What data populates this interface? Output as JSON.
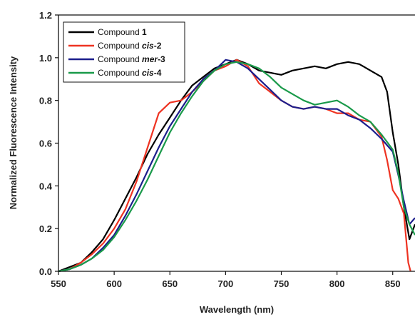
{
  "chart_data": {
    "type": "line",
    "xlabel": "Wavelength (nm)",
    "ylabel": "Normalized Fluorescence Intensity",
    "xlim": [
      550,
      870
    ],
    "ylim": [
      0,
      1.2
    ],
    "x_ticks": [
      550,
      600,
      650,
      700,
      750,
      800,
      850
    ],
    "y_ticks": [
      0.0,
      0.2,
      0.4,
      0.6,
      0.8,
      1.0,
      1.2
    ],
    "x_tick_labels": [
      "550",
      "600",
      "650",
      "700",
      "750",
      "800",
      "850"
    ],
    "y_tick_labels": [
      "0.0",
      "0.2",
      "0.4",
      "0.6",
      "0.8",
      "1.0",
      "1.2"
    ],
    "grid": false,
    "legend_position": "top-left",
    "series": [
      {
        "name_prefix": "Compound ",
        "name_style": "",
        "name_suffix": "1",
        "color": "#000000",
        "points": [
          [
            550,
            0
          ],
          [
            560,
            0.02
          ],
          [
            570,
            0.04
          ],
          [
            580,
            0.09
          ],
          [
            590,
            0.15
          ],
          [
            600,
            0.24
          ],
          [
            610,
            0.34
          ],
          [
            620,
            0.44
          ],
          [
            630,
            0.55
          ],
          [
            640,
            0.64
          ],
          [
            650,
            0.72
          ],
          [
            660,
            0.8
          ],
          [
            670,
            0.87
          ],
          [
            680,
            0.91
          ],
          [
            690,
            0.95
          ],
          [
            700,
            0.97
          ],
          [
            710,
            0.99
          ],
          [
            720,
            0.97
          ],
          [
            730,
            0.94
          ],
          [
            740,
            0.93
          ],
          [
            750,
            0.92
          ],
          [
            760,
            0.94
          ],
          [
            770,
            0.95
          ],
          [
            780,
            0.96
          ],
          [
            790,
            0.95
          ],
          [
            800,
            0.97
          ],
          [
            810,
            0.98
          ],
          [
            820,
            0.97
          ],
          [
            830,
            0.94
          ],
          [
            840,
            0.91
          ],
          [
            845,
            0.84
          ],
          [
            850,
            0.65
          ],
          [
            855,
            0.5
          ],
          [
            860,
            0.3
          ],
          [
            865,
            0.15
          ],
          [
            870,
            0.22
          ]
        ]
      },
      {
        "name_prefix": "Compound ",
        "name_style": "cis",
        "name_suffix": "-2",
        "color": "#ee3322",
        "points": [
          [
            550,
            0
          ],
          [
            560,
            0.01
          ],
          [
            570,
            0.04
          ],
          [
            580,
            0.08
          ],
          [
            590,
            0.13
          ],
          [
            600,
            0.2
          ],
          [
            610,
            0.29
          ],
          [
            620,
            0.42
          ],
          [
            630,
            0.58
          ],
          [
            640,
            0.74
          ],
          [
            650,
            0.79
          ],
          [
            660,
            0.8
          ],
          [
            670,
            0.84
          ],
          [
            680,
            0.89
          ],
          [
            690,
            0.94
          ],
          [
            700,
            0.96
          ],
          [
            710,
            0.99
          ],
          [
            720,
            0.96
          ],
          [
            730,
            0.88
          ],
          [
            740,
            0.84
          ],
          [
            750,
            0.8
          ],
          [
            760,
            0.77
          ],
          [
            770,
            0.76
          ],
          [
            780,
            0.77
          ],
          [
            790,
            0.76
          ],
          [
            800,
            0.74
          ],
          [
            810,
            0.74
          ],
          [
            820,
            0.71
          ],
          [
            830,
            0.7
          ],
          [
            840,
            0.63
          ],
          [
            845,
            0.52
          ],
          [
            850,
            0.38
          ],
          [
            855,
            0.34
          ],
          [
            860,
            0.27
          ],
          [
            864,
            0.04
          ],
          [
            866,
            0.0
          ]
        ]
      },
      {
        "name_prefix": "Compound ",
        "name_style": "mer",
        "name_suffix": "-3",
        "color": "#1c1e8c",
        "points": [
          [
            550,
            0
          ],
          [
            560,
            0.01
          ],
          [
            570,
            0.03
          ],
          [
            580,
            0.06
          ],
          [
            590,
            0.11
          ],
          [
            600,
            0.17
          ],
          [
            610,
            0.26
          ],
          [
            620,
            0.36
          ],
          [
            630,
            0.47
          ],
          [
            640,
            0.58
          ],
          [
            650,
            0.68
          ],
          [
            660,
            0.76
          ],
          [
            670,
            0.84
          ],
          [
            680,
            0.9
          ],
          [
            690,
            0.94
          ],
          [
            700,
            0.99
          ],
          [
            710,
            0.98
          ],
          [
            720,
            0.95
          ],
          [
            730,
            0.9
          ],
          [
            740,
            0.85
          ],
          [
            750,
            0.8
          ],
          [
            760,
            0.77
          ],
          [
            770,
            0.76
          ],
          [
            780,
            0.77
          ],
          [
            790,
            0.76
          ],
          [
            800,
            0.76
          ],
          [
            810,
            0.73
          ],
          [
            820,
            0.71
          ],
          [
            830,
            0.67
          ],
          [
            840,
            0.62
          ],
          [
            850,
            0.56
          ],
          [
            855,
            0.45
          ],
          [
            860,
            0.33
          ],
          [
            865,
            0.22
          ],
          [
            870,
            0.25
          ]
        ]
      },
      {
        "name_prefix": "Compound ",
        "name_style": "cis",
        "name_suffix": "-4",
        "color": "#1a9a4a",
        "points": [
          [
            550,
            0
          ],
          [
            560,
            0.01
          ],
          [
            570,
            0.03
          ],
          [
            580,
            0.06
          ],
          [
            590,
            0.1
          ],
          [
            600,
            0.16
          ],
          [
            610,
            0.24
          ],
          [
            620,
            0.33
          ],
          [
            630,
            0.43
          ],
          [
            640,
            0.54
          ],
          [
            650,
            0.65
          ],
          [
            660,
            0.74
          ],
          [
            670,
            0.82
          ],
          [
            680,
            0.89
          ],
          [
            690,
            0.94
          ],
          [
            700,
            0.97
          ],
          [
            710,
            0.98
          ],
          [
            720,
            0.97
          ],
          [
            730,
            0.95
          ],
          [
            740,
            0.91
          ],
          [
            750,
            0.86
          ],
          [
            760,
            0.83
          ],
          [
            770,
            0.8
          ],
          [
            780,
            0.78
          ],
          [
            790,
            0.79
          ],
          [
            800,
            0.8
          ],
          [
            810,
            0.77
          ],
          [
            820,
            0.73
          ],
          [
            830,
            0.7
          ],
          [
            840,
            0.64
          ],
          [
            850,
            0.57
          ],
          [
            855,
            0.46
          ],
          [
            860,
            0.3
          ],
          [
            865,
            0.22
          ],
          [
            870,
            0.17
          ]
        ]
      }
    ]
  }
}
